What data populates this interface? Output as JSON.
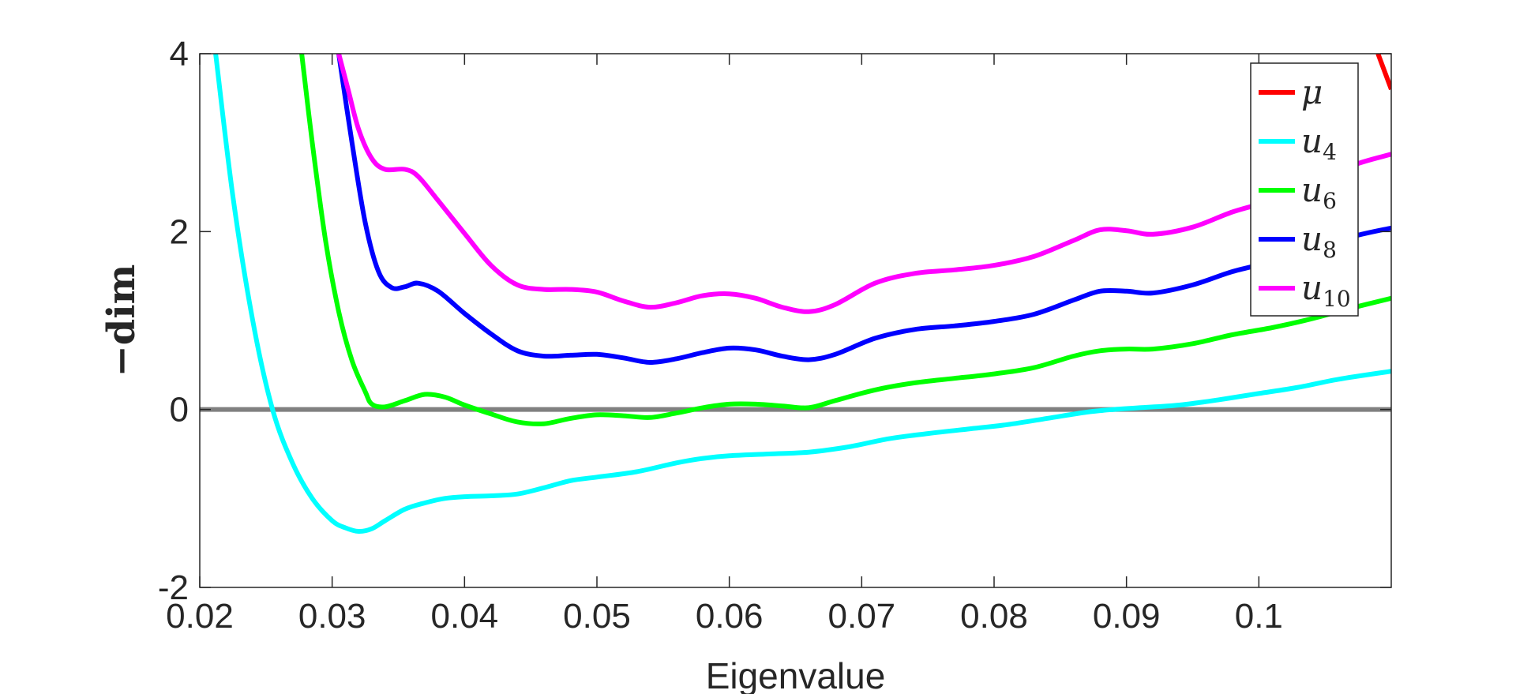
{
  "chart_data": {
    "type": "line",
    "xlabel": "Eigenvalue",
    "ylabel": "−dim",
    "xlim": [
      0.02,
      0.11
    ],
    "ylim": [
      -2,
      4
    ],
    "xticks": [
      0.02,
      0.03,
      0.04,
      0.05,
      0.06,
      0.07,
      0.08,
      0.09,
      0.1
    ],
    "xtick_labels": [
      "0.02",
      "0.03",
      "0.04",
      "0.05",
      "0.06",
      "0.07",
      "0.08",
      "0.09",
      "0.1"
    ],
    "yticks": [
      -2,
      0,
      2,
      4
    ],
    "ytick_labels": [
      "-2",
      "0",
      "2",
      "4"
    ],
    "grid": false,
    "legend_position": "top-right",
    "reference_line": {
      "y": 0,
      "color": "#808080"
    },
    "series": [
      {
        "name": "μ",
        "legend_base": "μ",
        "legend_sub": "",
        "color": "#ff0000",
        "x": [
          0.109,
          0.11
        ],
        "y": [
          4.0,
          3.6
        ]
      },
      {
        "name": "u4",
        "legend_base": "u",
        "legend_sub": "4",
        "color": "#00ffff",
        "x": [
          0.0212,
          0.0225,
          0.024,
          0.0255,
          0.027,
          0.0285,
          0.03,
          0.031,
          0.032,
          0.033,
          0.034,
          0.0355,
          0.037,
          0.0385,
          0.04,
          0.042,
          0.044,
          0.046,
          0.048,
          0.05,
          0.053,
          0.056,
          0.058,
          0.06,
          0.063,
          0.066,
          0.069,
          0.072,
          0.075,
          0.078,
          0.081,
          0.084,
          0.087,
          0.089,
          0.091,
          0.094,
          0.097,
          0.1,
          0.103,
          0.106,
          0.11
        ],
        "y": [
          4.0,
          2.4,
          1.0,
          0.0,
          -0.6,
          -1.0,
          -1.25,
          -1.33,
          -1.37,
          -1.34,
          -1.25,
          -1.12,
          -1.05,
          -1.0,
          -0.98,
          -0.97,
          -0.95,
          -0.88,
          -0.8,
          -0.76,
          -0.7,
          -0.6,
          -0.55,
          -0.52,
          -0.5,
          -0.48,
          -0.42,
          -0.33,
          -0.27,
          -0.22,
          -0.17,
          -0.1,
          -0.03,
          0.0,
          0.02,
          0.05,
          0.11,
          0.18,
          0.25,
          0.34,
          0.43
        ]
      },
      {
        "name": "u6",
        "legend_base": "u",
        "legend_sub": "6",
        "color": "#00ff00",
        "x": [
          0.0277,
          0.0285,
          0.0295,
          0.0305,
          0.0315,
          0.0325,
          0.033,
          0.034,
          0.0355,
          0.037,
          0.0385,
          0.04,
          0.042,
          0.044,
          0.046,
          0.048,
          0.05,
          0.052,
          0.054,
          0.056,
          0.058,
          0.06,
          0.062,
          0.064,
          0.066,
          0.068,
          0.071,
          0.074,
          0.077,
          0.08,
          0.083,
          0.086,
          0.088,
          0.09,
          0.092,
          0.095,
          0.098,
          0.101,
          0.104,
          0.107,
          0.11
        ],
        "y": [
          4.0,
          3.0,
          1.9,
          1.1,
          0.55,
          0.2,
          0.06,
          0.03,
          0.1,
          0.17,
          0.14,
          0.05,
          -0.05,
          -0.14,
          -0.16,
          -0.1,
          -0.06,
          -0.07,
          -0.09,
          -0.04,
          0.02,
          0.06,
          0.06,
          0.04,
          0.02,
          0.1,
          0.22,
          0.3,
          0.35,
          0.4,
          0.47,
          0.6,
          0.66,
          0.68,
          0.68,
          0.74,
          0.84,
          0.92,
          1.02,
          1.14,
          1.25
        ]
      },
      {
        "name": "u8",
        "legend_base": "u",
        "legend_sub": "8",
        "color": "#0000ff",
        "x": [
          0.0305,
          0.0315,
          0.0325,
          0.0335,
          0.0345,
          0.0355,
          0.0365,
          0.038,
          0.04,
          0.042,
          0.044,
          0.046,
          0.048,
          0.05,
          0.052,
          0.054,
          0.056,
          0.058,
          0.06,
          0.062,
          0.064,
          0.066,
          0.068,
          0.071,
          0.074,
          0.077,
          0.08,
          0.083,
          0.086,
          0.088,
          0.09,
          0.092,
          0.095,
          0.098,
          0.101,
          0.104,
          0.107,
          0.11
        ],
        "y": [
          4.0,
          3.0,
          2.1,
          1.55,
          1.37,
          1.38,
          1.42,
          1.33,
          1.08,
          0.85,
          0.66,
          0.6,
          0.61,
          0.62,
          0.58,
          0.53,
          0.57,
          0.64,
          0.69,
          0.67,
          0.6,
          0.56,
          0.62,
          0.8,
          0.9,
          0.94,
          0.99,
          1.07,
          1.23,
          1.33,
          1.33,
          1.31,
          1.4,
          1.55,
          1.66,
          1.78,
          1.94,
          2.04
        ]
      },
      {
        "name": "u10",
        "legend_base": "u",
        "legend_sub": "10",
        "color": "#ff00ff",
        "x": [
          0.0305,
          0.0312,
          0.032,
          0.033,
          0.034,
          0.0355,
          0.0365,
          0.038,
          0.04,
          0.042,
          0.044,
          0.046,
          0.048,
          0.05,
          0.052,
          0.054,
          0.056,
          0.058,
          0.06,
          0.062,
          0.064,
          0.066,
          0.068,
          0.071,
          0.074,
          0.077,
          0.08,
          0.083,
          0.086,
          0.088,
          0.09,
          0.092,
          0.095,
          0.098,
          0.101,
          0.104,
          0.107,
          0.11
        ],
        "y": [
          4.0,
          3.6,
          3.15,
          2.82,
          2.7,
          2.7,
          2.62,
          2.35,
          1.98,
          1.62,
          1.4,
          1.35,
          1.35,
          1.32,
          1.22,
          1.15,
          1.2,
          1.28,
          1.3,
          1.25,
          1.15,
          1.1,
          1.18,
          1.42,
          1.53,
          1.57,
          1.62,
          1.72,
          1.9,
          2.02,
          2.01,
          1.97,
          2.05,
          2.22,
          2.35,
          2.52,
          2.74,
          2.87
        ]
      }
    ]
  }
}
